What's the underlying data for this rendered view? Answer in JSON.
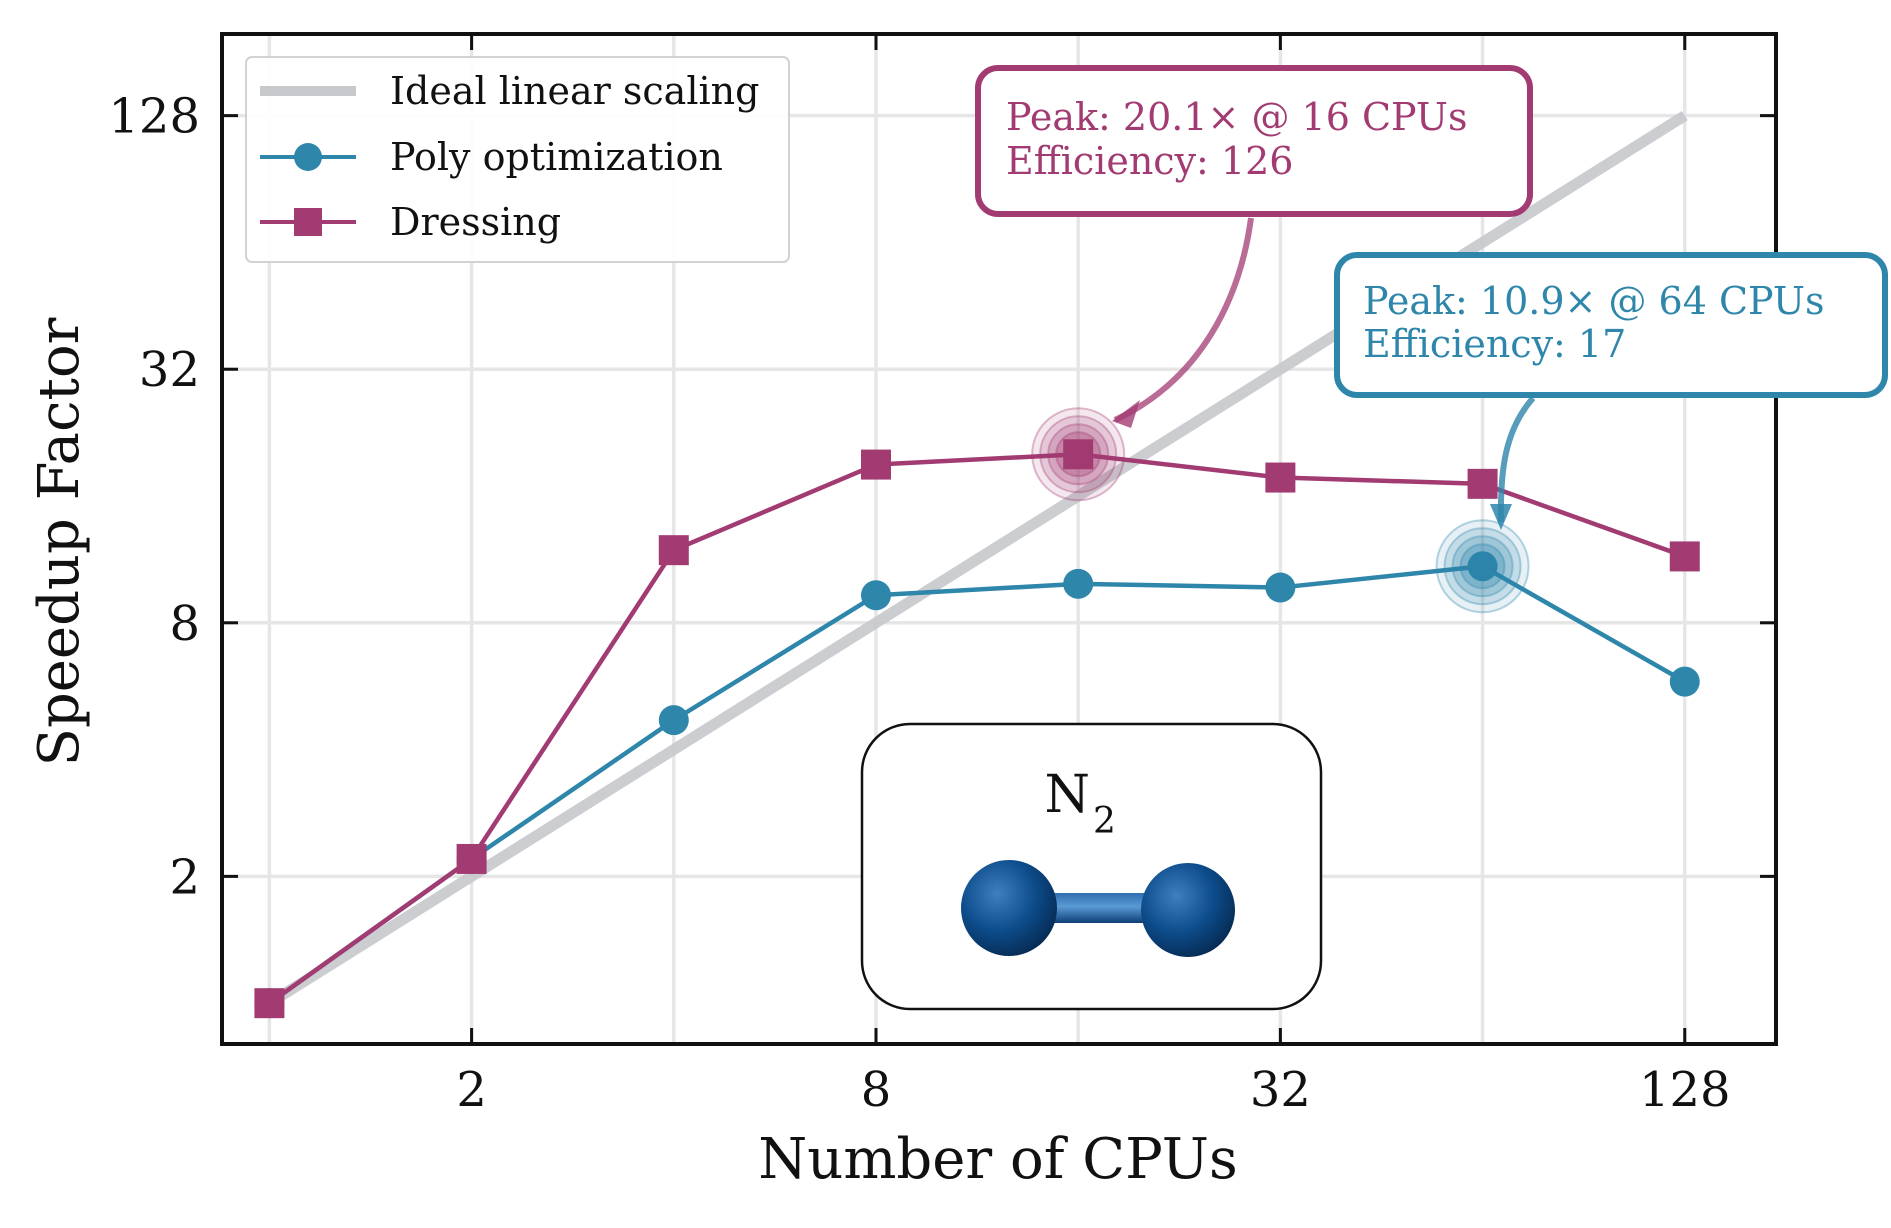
{
  "chart_data": {
    "type": "line",
    "xscale": "log2",
    "yscale": "log2",
    "xlabel": "Number of CPUs",
    "ylabel": "Speedup Factor",
    "xlim": [
      0.85,
      175
    ],
    "ylim": [
      0.8,
      200
    ],
    "xticks": [
      2,
      8,
      32,
      128
    ],
    "xtick_labels": [
      "2",
      "8",
      "32",
      "128"
    ],
    "yticks": [
      2,
      8,
      32,
      128
    ],
    "ytick_labels": [
      "2",
      "8",
      "32",
      "128"
    ],
    "grid": true,
    "legend_position": "top-left",
    "series": [
      {
        "name": "Ideal linear scaling",
        "style": "line",
        "color": "#c6c8cc",
        "x": [
          1,
          128
        ],
        "y": [
          1,
          128
        ]
      },
      {
        "name": "Poly optimization",
        "style": "line-circle",
        "color": "#2e86ab",
        "x": [
          1,
          2,
          4,
          8,
          16,
          32,
          64,
          128
        ],
        "y": [
          1,
          2.2,
          4.7,
          9.3,
          9.9,
          9.7,
          10.9,
          5.8
        ]
      },
      {
        "name": "Dressing",
        "style": "line-square",
        "color": "#a23b72",
        "x": [
          1,
          2,
          4,
          8,
          16,
          32,
          64,
          128
        ],
        "y": [
          1,
          2.2,
          11.9,
          19.0,
          20.1,
          17.7,
          17.1,
          11.5
        ]
      }
    ],
    "annotations": [
      {
        "series": "Dressing",
        "x": 16,
        "y": 20.1,
        "color": "#a23b72",
        "line1": "Peak: 20.1× @ 16 CPUs",
        "line2": "Efficiency: 126"
      },
      {
        "series": "Poly optimization",
        "x": 64,
        "y": 10.9,
        "color": "#2e86ab",
        "line1": "Peak: 10.9× @ 64 CPUs",
        "line2": "Efficiency: 17"
      }
    ],
    "inset": {
      "label_main": "N",
      "label_sub": "2",
      "atom_color": "#0d4d8c"
    }
  }
}
